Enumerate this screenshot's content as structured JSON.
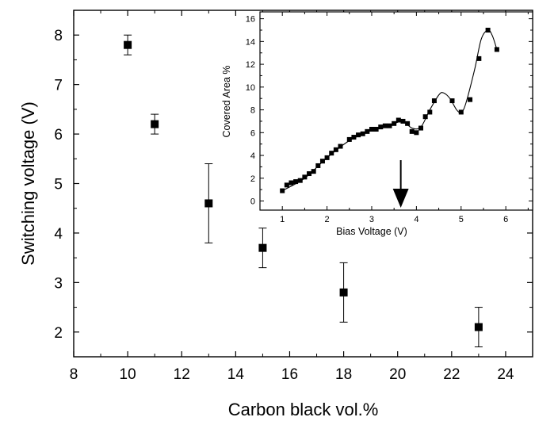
{
  "chart_data": [
    {
      "type": "scatter",
      "error_bars": true,
      "xlabel": "Carbon black vol.%",
      "ylabel": "Switching voltage (V)",
      "xlim": [
        8,
        25
      ],
      "ylim": [
        1.5,
        8.5
      ],
      "xticks": [
        "8",
        "10",
        "12",
        "14",
        "16",
        "18",
        "20",
        "22",
        "24"
      ],
      "yticks": [
        "2",
        "3",
        "4",
        "5",
        "6",
        "7",
        "8"
      ],
      "grid": false,
      "points": [
        {
          "x": 10,
          "y": 7.8,
          "err_low": 7.6,
          "err_high": 8.0
        },
        {
          "x": 11,
          "y": 6.2,
          "err_low": 6.0,
          "err_high": 6.4
        },
        {
          "x": 13,
          "y": 4.6,
          "err_low": 3.8,
          "err_high": 5.4
        },
        {
          "x": 15,
          "y": 3.7,
          "err_low": 3.3,
          "err_high": 4.1
        },
        {
          "x": 18,
          "y": 2.8,
          "err_low": 2.2,
          "err_high": 3.4
        },
        {
          "x": 23,
          "y": 2.1,
          "err_low": 1.7,
          "err_high": 2.5
        }
      ]
    },
    {
      "type": "line",
      "markers": "square",
      "placement": "inset-top-right",
      "xlabel": "Bias Voltage (V)",
      "ylabel": "Covered Area %",
      "xlim": [
        0.5,
        6.6
      ],
      "ylim": [
        -0.8,
        16.6
      ],
      "xticks": [
        "1",
        "2",
        "3",
        "4",
        "5",
        "6"
      ],
      "yticks": [
        "0",
        "2",
        "4",
        "6",
        "8",
        "10",
        "12",
        "14",
        "16"
      ],
      "grid": false,
      "arrow_at_x": 3.65,
      "x": [
        1.0,
        1.1,
        1.2,
        1.3,
        1.4,
        1.5,
        1.6,
        1.7,
        1.8,
        1.9,
        2.0,
        2.1,
        2.2,
        2.3,
        2.5,
        2.6,
        2.7,
        2.8,
        2.9,
        3.0,
        3.1,
        3.2,
        3.3,
        3.4,
        3.5,
        3.6,
        3.7,
        3.8,
        3.9,
        4.0,
        4.1,
        4.2,
        4.3,
        4.4,
        4.8,
        5.0,
        5.2,
        5.4,
        5.6,
        5.8
      ],
      "y": [
        0.9,
        1.4,
        1.6,
        1.7,
        1.8,
        2.1,
        2.4,
        2.6,
        3.1,
        3.5,
        3.8,
        4.2,
        4.5,
        4.8,
        5.4,
        5.6,
        5.8,
        5.9,
        6.1,
        6.3,
        6.3,
        6.5,
        6.6,
        6.6,
        6.8,
        7.1,
        7.0,
        6.8,
        6.1,
        6.0,
        6.4,
        7.4,
        7.8,
        8.8,
        8.8,
        7.8,
        8.9,
        12.5,
        15.0,
        13.3
      ],
      "curve": {
        "x": [
          1.0,
          1.5,
          2.0,
          2.5,
          3.0,
          3.5,
          3.7,
          3.9,
          4.1,
          4.3,
          4.5,
          4.6,
          4.75,
          4.9,
          5.0,
          5.1,
          5.3,
          5.45,
          5.6,
          5.7,
          5.8
        ],
        "y": [
          0.9,
          2.0,
          3.8,
          5.3,
          6.2,
          6.8,
          7.0,
          6.4,
          6.5,
          8.0,
          9.3,
          9.5,
          9.0,
          8.0,
          7.8,
          8.5,
          11.5,
          14.2,
          15.0,
          14.5,
          13.3
        ]
      }
    }
  ]
}
